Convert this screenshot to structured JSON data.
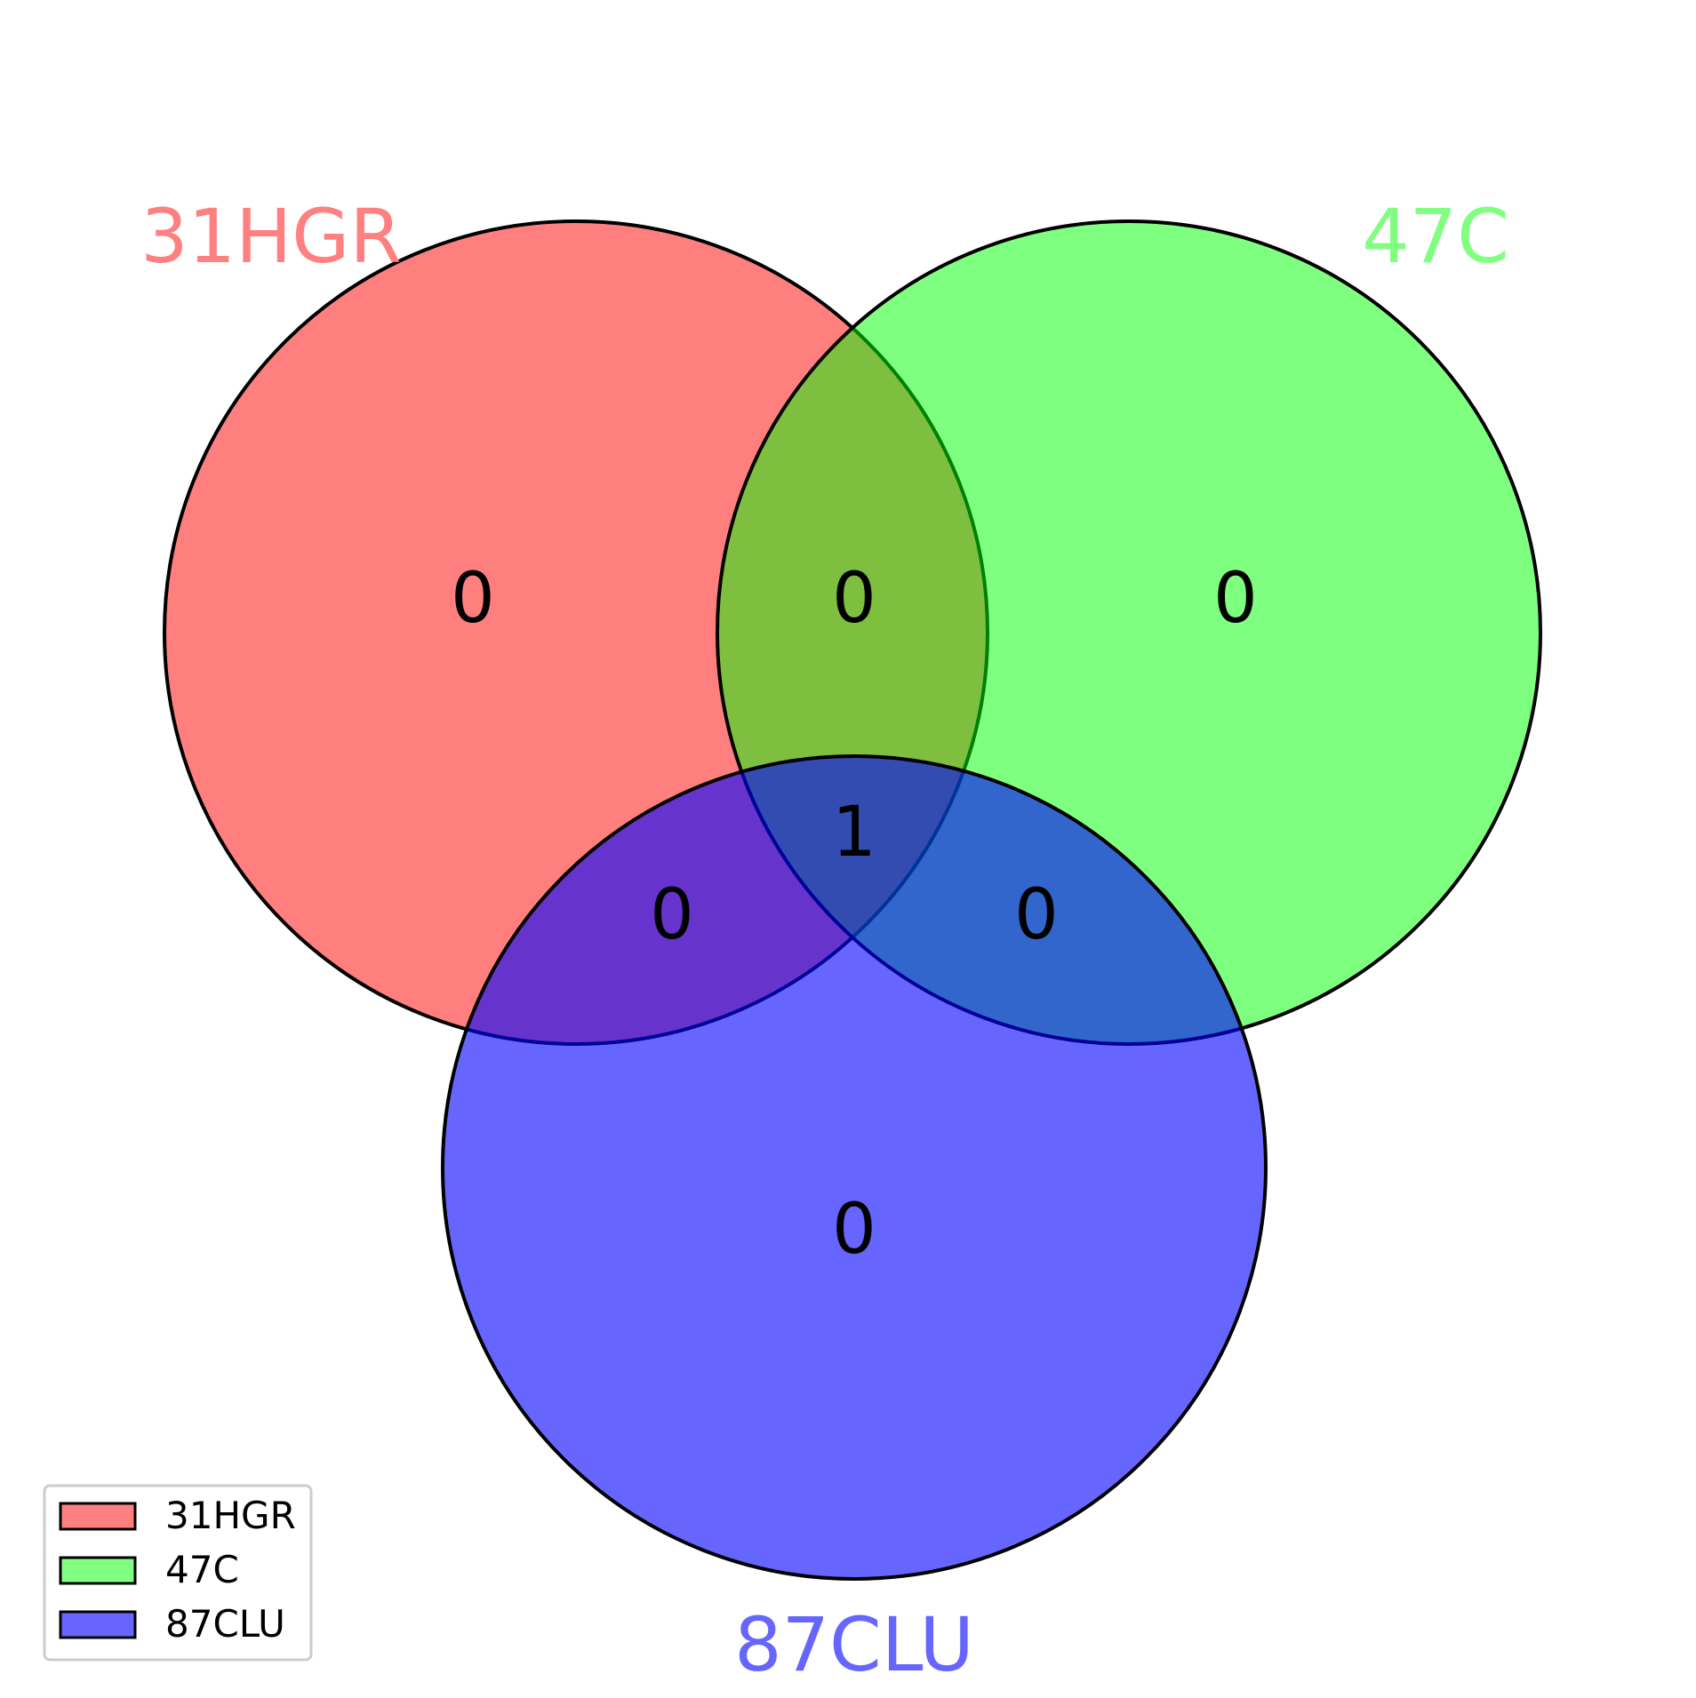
{
  "sets": [
    {
      "label": "31HGR",
      "color": "#ff0000",
      "label_color": "#ff8080",
      "fill_hex": "#ff8080"
    },
    {
      "label": "47C",
      "color": "#00ff00",
      "label_color": "#80ff80",
      "fill_hex": "#80ff80"
    },
    {
      "label": "87CLU",
      "color": "#0000ff",
      "label_color": "#6666ff",
      "fill_hex": "#6666ff"
    }
  ],
  "regions": {
    "a_only": "0",
    "b_only": "0",
    "c_only": "0",
    "ab": "0",
    "ac": "0",
    "bc": "0",
    "abc": "1"
  },
  "legend": {
    "placement": "bottom-left",
    "items": [
      "31HGR",
      "47C",
      "87CLU"
    ]
  }
}
